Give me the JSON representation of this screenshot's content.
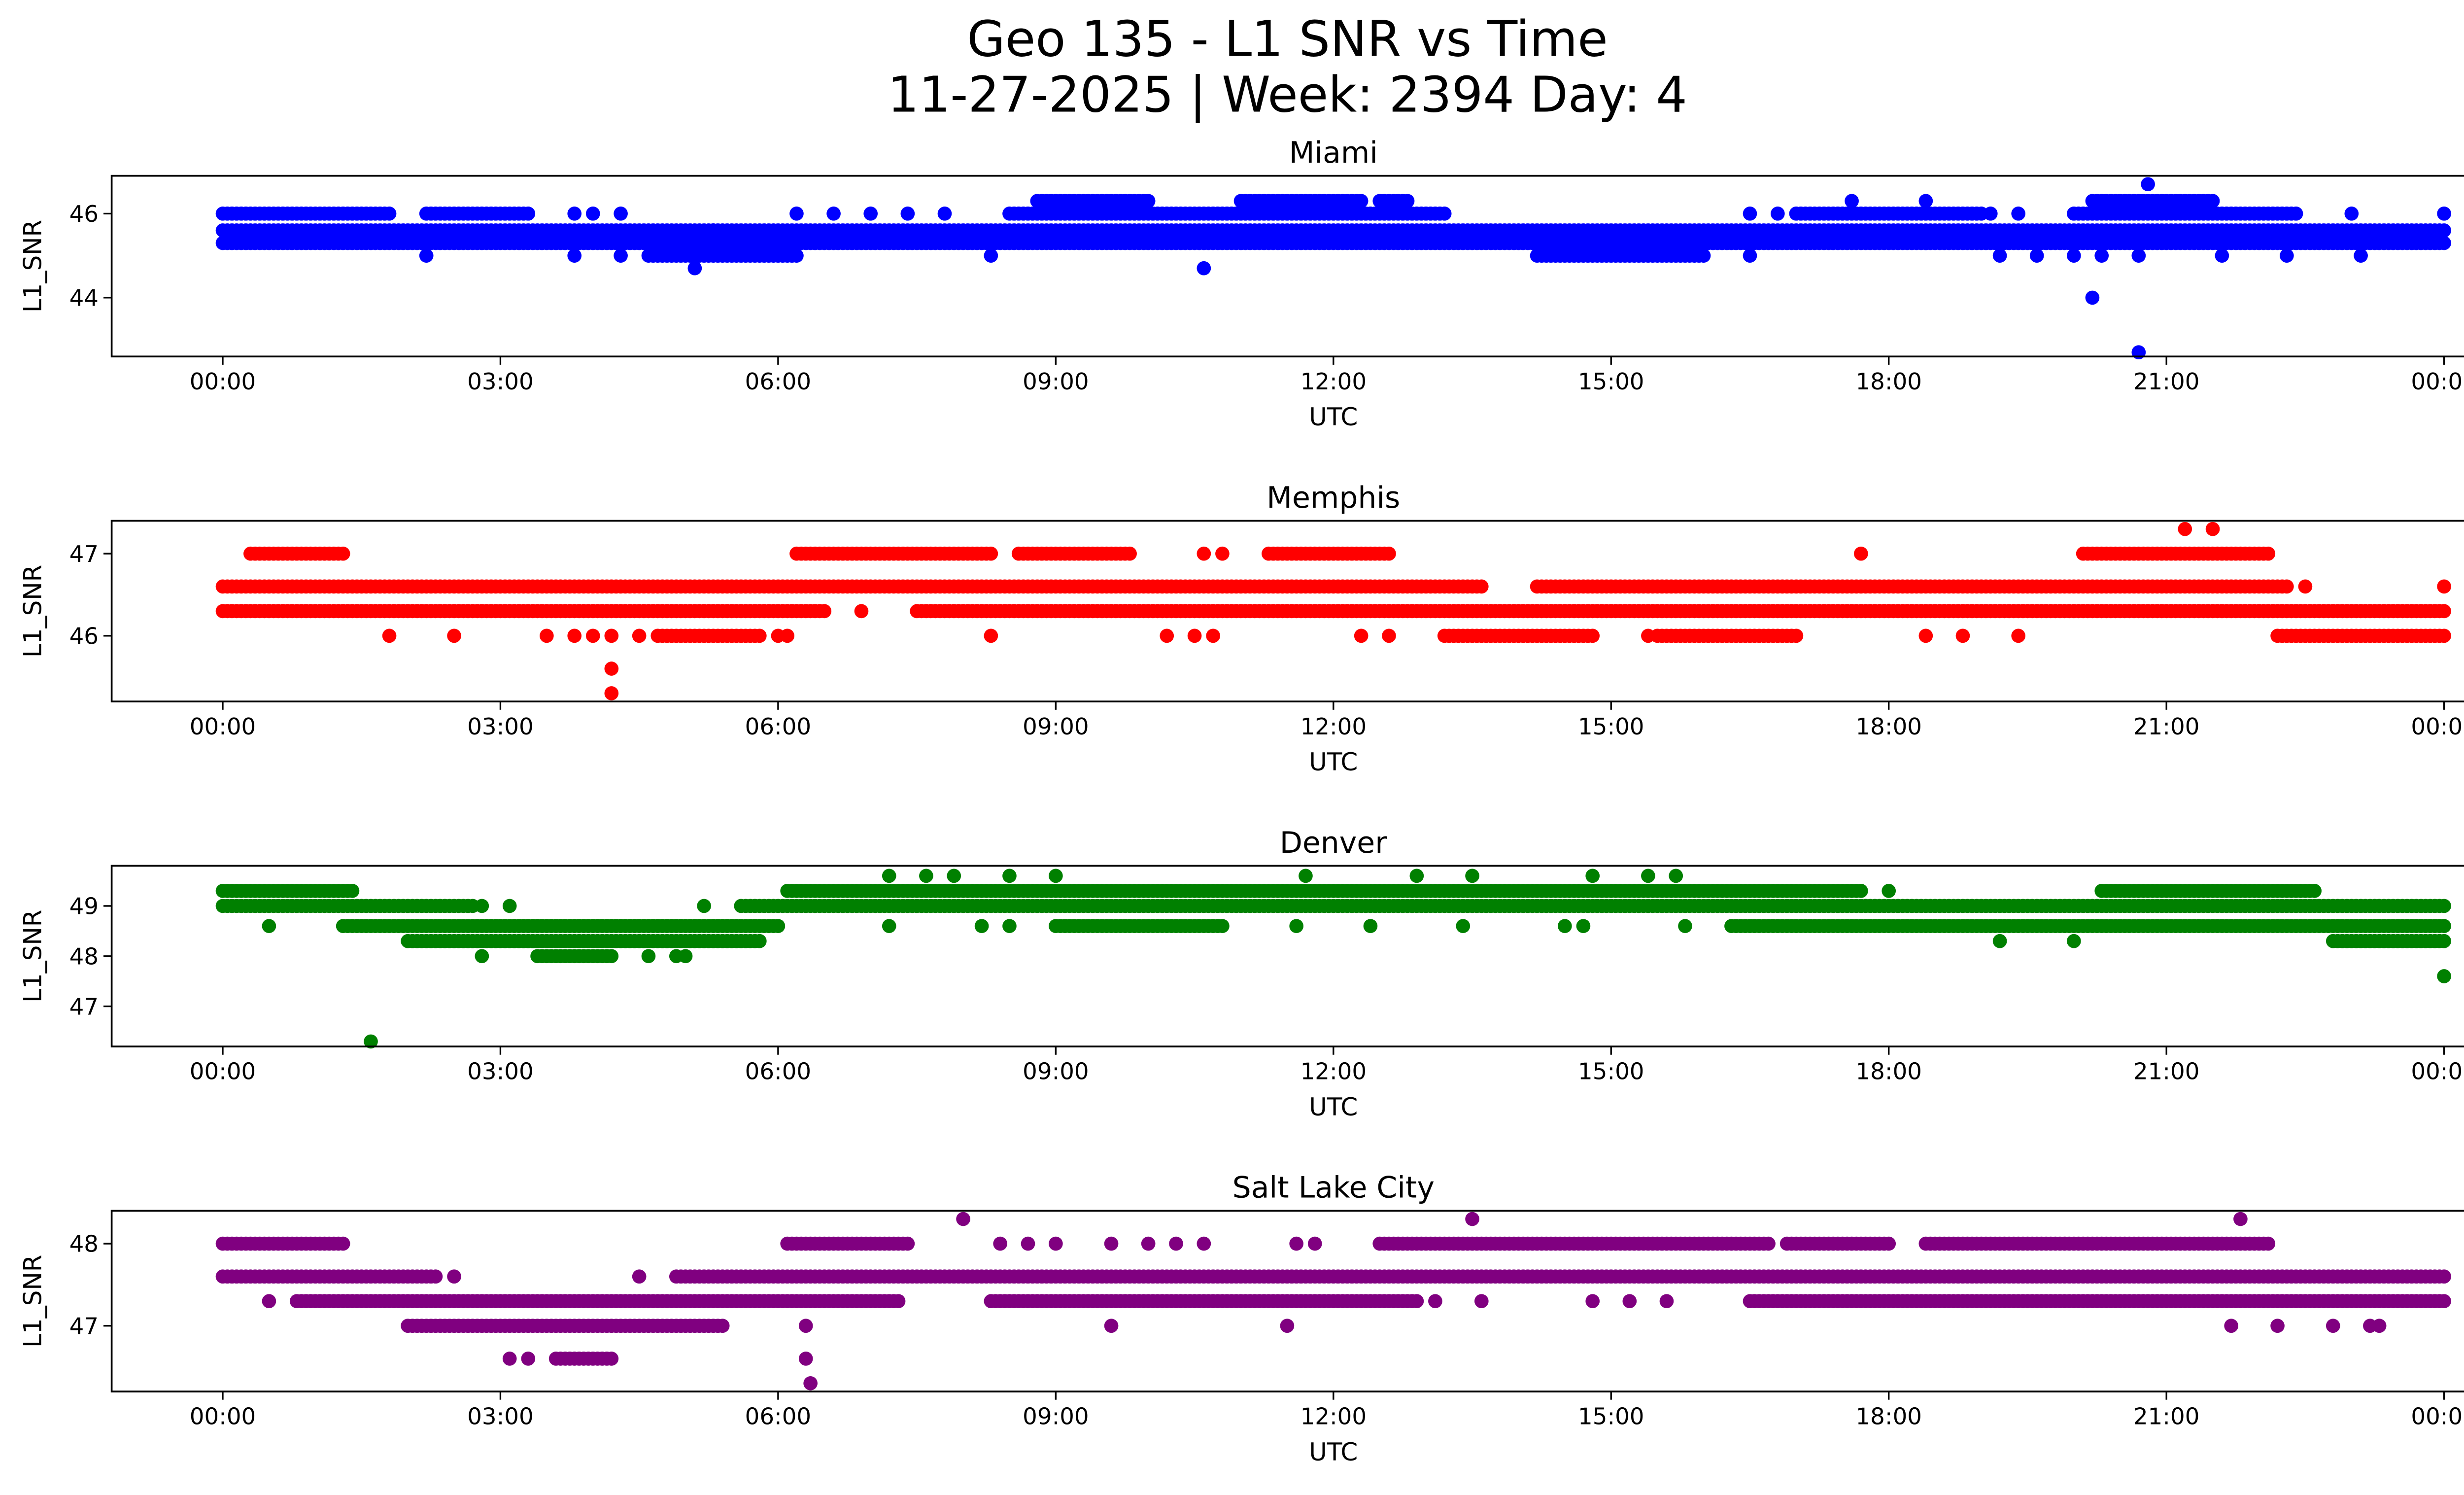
{
  "chart_data": {
    "type": "scatter",
    "title": "Geo 135 - L1 SNR vs Time",
    "subtitle": "11-27-2025 | Week: 2394 Day: 4",
    "x_ticks": [
      "00:00",
      "03:00",
      "06:00",
      "09:00",
      "12:00",
      "15:00",
      "18:00",
      "21:00",
      "00:00"
    ],
    "x_tick_hours": [
      0,
      3,
      6,
      9,
      12,
      15,
      18,
      21,
      24
    ],
    "xlim_hours": [
      -1.2,
      25.2
    ],
    "grid": false,
    "panels": [
      {
        "title": "Miami",
        "xlabel": "UTC",
        "ylabel": "L1_SNR",
        "color": "#0000ff",
        "ylim": [
          42.6,
          46.9
        ],
        "y_ticks": [
          44,
          46
        ],
        "runs": [
          [
            45.6,
            0.0,
            24.0
          ],
          [
            45.3,
            0.0,
            24.0
          ],
          [
            46.0,
            0.0,
            1.8
          ],
          [
            46.0,
            2.2,
            3.3
          ],
          [
            46.0,
            8.5,
            13.2
          ],
          [
            46.0,
            17.0,
            19.0
          ],
          [
            46.0,
            20.0,
            22.4
          ],
          [
            45.0,
            4.6,
            6.2
          ],
          [
            45.0,
            14.2,
            16.0
          ],
          [
            46.3,
            8.8,
            10.0
          ],
          [
            46.3,
            11.0,
            12.3
          ],
          [
            46.3,
            12.5,
            12.8
          ],
          [
            46.3,
            20.2,
            21.5
          ]
        ],
        "points": [
          [
            3.8,
            46.0
          ],
          [
            4.0,
            46.0
          ],
          [
            4.3,
            46.0
          ],
          [
            5.3,
            45.6
          ],
          [
            6.2,
            46.0
          ],
          [
            6.6,
            46.0
          ],
          [
            7.0,
            46.0
          ],
          [
            7.4,
            46.0
          ],
          [
            7.8,
            46.0
          ],
          [
            2.2,
            45.0
          ],
          [
            3.8,
            45.0
          ],
          [
            4.3,
            45.0
          ],
          [
            8.3,
            45.0
          ],
          [
            5.1,
            44.7
          ],
          [
            10.6,
            44.7
          ],
          [
            16.5,
            46.0
          ],
          [
            16.8,
            46.0
          ],
          [
            17.6,
            46.3
          ],
          [
            18.4,
            46.3
          ],
          [
            19.1,
            46.0
          ],
          [
            19.4,
            46.0
          ],
          [
            20.8,
            46.7
          ],
          [
            23.0,
            46.0
          ],
          [
            24.0,
            46.0
          ],
          [
            16.5,
            45.0
          ],
          [
            18.4,
            45.3
          ],
          [
            19.2,
            45.0
          ],
          [
            19.6,
            45.0
          ],
          [
            20.0,
            45.0
          ],
          [
            20.3,
            45.0
          ],
          [
            20.7,
            45.0
          ],
          [
            21.6,
            45.0
          ],
          [
            22.3,
            45.0
          ],
          [
            23.1,
            45.0
          ],
          [
            20.2,
            44.0
          ],
          [
            20.7,
            42.7
          ]
        ]
      },
      {
        "title": "Memphis",
        "xlabel": "UTC",
        "ylabel": "L1_SNR",
        "color": "#ff0000",
        "ylim": [
          45.2,
          47.4
        ],
        "y_ticks": [
          46,
          47
        ],
        "runs": [
          [
            46.6,
            0.0,
            13.6
          ],
          [
            46.6,
            14.2,
            22.3
          ],
          [
            46.3,
            0.0,
            6.5
          ],
          [
            46.3,
            7.5,
            24.0
          ],
          [
            47.0,
            0.3,
            1.3
          ],
          [
            47.0,
            6.2,
            8.3
          ],
          [
            47.0,
            8.6,
            9.8
          ],
          [
            47.0,
            11.3,
            12.6
          ],
          [
            47.0,
            20.1,
            22.1
          ],
          [
            46.0,
            4.7,
            5.8
          ],
          [
            46.0,
            13.2,
            14.8
          ],
          [
            46.0,
            15.5,
            17.0
          ],
          [
            46.0,
            22.2,
            24.0
          ]
        ],
        "points": [
          [
            1.8,
            46.0
          ],
          [
            2.5,
            46.0
          ],
          [
            3.5,
            46.0
          ],
          [
            3.8,
            46.0
          ],
          [
            4.0,
            46.0
          ],
          [
            4.2,
            46.0
          ],
          [
            4.5,
            46.0
          ],
          [
            6.0,
            46.0
          ],
          [
            6.1,
            46.0
          ],
          [
            8.3,
            46.0
          ],
          [
            10.2,
            46.0
          ],
          [
            10.5,
            46.0
          ],
          [
            10.7,
            46.0
          ],
          [
            12.3,
            46.0
          ],
          [
            12.6,
            46.0
          ],
          [
            15.4,
            46.0
          ],
          [
            18.4,
            46.0
          ],
          [
            18.8,
            46.0
          ],
          [
            19.4,
            46.0
          ],
          [
            22.5,
            46.6
          ],
          [
            24.0,
            46.6
          ],
          [
            6.9,
            46.3
          ],
          [
            10.6,
            47.0
          ],
          [
            10.8,
            47.0
          ],
          [
            17.7,
            47.0
          ],
          [
            21.2,
            47.3
          ],
          [
            21.5,
            47.3
          ],
          [
            4.2,
            45.6
          ],
          [
            4.2,
            45.3
          ]
        ]
      },
      {
        "title": "Denver",
        "xlabel": "UTC",
        "ylabel": "L1_SNR",
        "color": "#008000",
        "ylim": [
          46.2,
          49.8
        ],
        "y_ticks": [
          47,
          48,
          49
        ],
        "runs": [
          [
            49.3,
            0.0,
            1.4
          ],
          [
            49.3,
            6.1,
            17.7
          ],
          [
            49.3,
            20.3,
            22.6
          ],
          [
            49.0,
            0.0,
            2.7
          ],
          [
            49.0,
            5.6,
            24.0
          ],
          [
            48.6,
            1.3,
            6.0
          ],
          [
            48.6,
            9.0,
            10.8
          ],
          [
            48.6,
            16.3,
            24.0
          ],
          [
            48.3,
            2.0,
            5.8
          ],
          [
            48.3,
            22.8,
            24.0
          ],
          [
            48.0,
            3.4,
            4.2
          ]
        ],
        "points": [
          [
            0.5,
            48.6
          ],
          [
            2.8,
            49.0
          ],
          [
            3.1,
            49.0
          ],
          [
            2.8,
            48.0
          ],
          [
            4.6,
            48.0
          ],
          [
            4.9,
            48.0
          ],
          [
            5.0,
            48.0
          ],
          [
            5.2,
            49.0
          ],
          [
            7.2,
            49.6
          ],
          [
            7.6,
            49.6
          ],
          [
            7.9,
            49.6
          ],
          [
            8.5,
            49.6
          ],
          [
            9.0,
            49.6
          ],
          [
            11.7,
            49.6
          ],
          [
            12.9,
            49.6
          ],
          [
            13.5,
            49.6
          ],
          [
            14.8,
            49.6
          ],
          [
            15.4,
            49.6
          ],
          [
            15.7,
            49.6
          ],
          [
            7.2,
            48.6
          ],
          [
            8.2,
            48.6
          ],
          [
            8.5,
            48.6
          ],
          [
            11.6,
            48.6
          ],
          [
            12.4,
            48.6
          ],
          [
            13.4,
            48.6
          ],
          [
            14.5,
            48.6
          ],
          [
            14.7,
            48.6
          ],
          [
            15.8,
            48.6
          ],
          [
            18.0,
            49.3
          ],
          [
            19.2,
            48.3
          ],
          [
            20.0,
            48.3
          ],
          [
            1.6,
            46.3
          ],
          [
            24.0,
            47.6
          ]
        ]
      },
      {
        "title": "Salt Lake City",
        "xlabel": "UTC",
        "ylabel": "L1_SNR",
        "color": "#800080",
        "ylim": [
          46.2,
          48.4
        ],
        "y_ticks": [
          47,
          48
        ],
        "runs": [
          [
            48.0,
            0.0,
            1.3
          ],
          [
            48.0,
            6.1,
            7.4
          ],
          [
            48.0,
            12.5,
            16.7
          ],
          [
            48.0,
            16.9,
            18.0
          ],
          [
            48.0,
            18.4,
            22.1
          ],
          [
            47.6,
            0.0,
            2.3
          ],
          [
            47.6,
            4.9,
            24.0
          ],
          [
            47.3,
            0.8,
            7.3
          ],
          [
            47.3,
            8.3,
            12.9
          ],
          [
            47.3,
            16.5,
            24.0
          ],
          [
            47.0,
            2.0,
            5.4
          ],
          [
            46.6,
            3.6,
            4.2
          ]
        ],
        "points": [
          [
            0.5,
            47.3
          ],
          [
            2.5,
            47.6
          ],
          [
            4.5,
            47.6
          ],
          [
            8.0,
            48.3
          ],
          [
            13.5,
            48.3
          ],
          [
            21.8,
            48.3
          ],
          [
            8.4,
            48.0
          ],
          [
            8.7,
            48.0
          ],
          [
            9.0,
            48.0
          ],
          [
            9.6,
            48.0
          ],
          [
            10.0,
            48.0
          ],
          [
            10.3,
            48.0
          ],
          [
            10.6,
            48.0
          ],
          [
            11.6,
            48.0
          ],
          [
            11.8,
            48.0
          ],
          [
            3.1,
            46.6
          ],
          [
            3.3,
            46.6
          ],
          [
            6.3,
            47.0
          ],
          [
            6.3,
            46.6
          ],
          [
            6.35,
            46.3
          ],
          [
            9.6,
            47.0
          ],
          [
            11.5,
            47.0
          ],
          [
            13.1,
            47.3
          ],
          [
            13.6,
            47.3
          ],
          [
            14.8,
            47.3
          ],
          [
            15.2,
            47.3
          ],
          [
            15.6,
            47.3
          ],
          [
            21.7,
            47.0
          ],
          [
            22.2,
            47.0
          ],
          [
            22.8,
            47.0
          ],
          [
            23.2,
            47.0
          ],
          [
            23.3,
            47.0
          ]
        ]
      }
    ]
  }
}
